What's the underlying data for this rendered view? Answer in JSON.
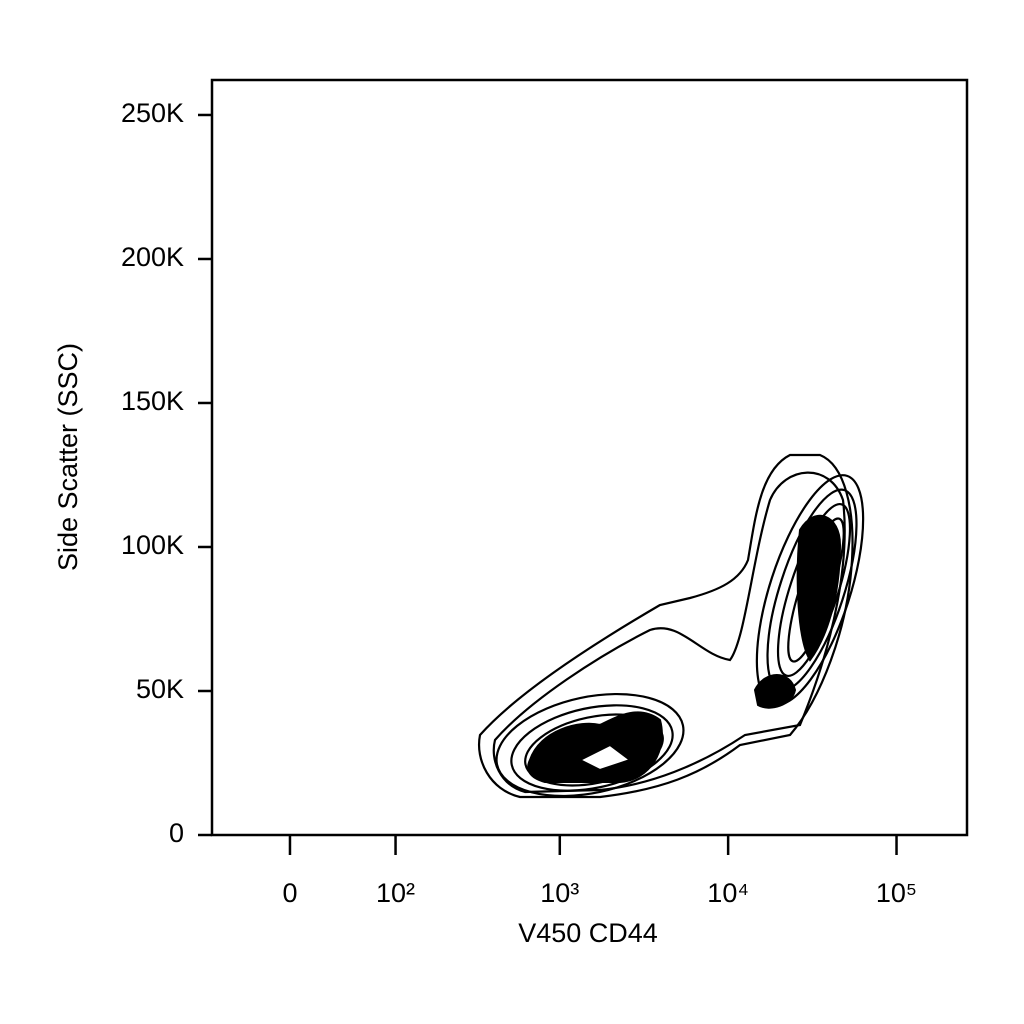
{
  "chart_data": {
    "type": "contour",
    "x_label": "V450 CD44",
    "y_label": "Side Scatter (SSC)",
    "xscale": "biexponential",
    "xlim": [
      -64,
      262144
    ],
    "ylim": [
      0,
      262144
    ],
    "xticks": [
      0,
      {
        "value": 100,
        "label": "10²"
      },
      {
        "value": 1000,
        "label": "10³"
      },
      {
        "value": 10000,
        "label": "10⁴"
      },
      {
        "value": 100000,
        "label": "10⁵"
      }
    ],
    "yticks": [
      0,
      {
        "value": 50000,
        "label": "50K"
      },
      {
        "value": 100000,
        "label": "100K"
      },
      {
        "value": 150000,
        "label": "150K"
      },
      {
        "value": 200000,
        "label": "200K"
      },
      {
        "value": 250000,
        "label": "250K"
      }
    ],
    "color": "#000000"
  }
}
